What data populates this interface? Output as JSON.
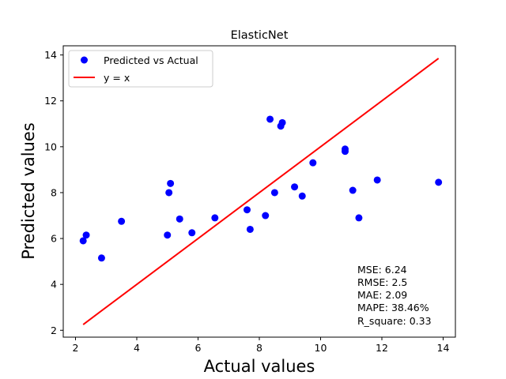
{
  "chart_data": {
    "type": "scatter",
    "title": "ElasticNet",
    "xlabel": "Actual values",
    "ylabel": "Predicted values",
    "xlim": [
      1.6,
      14.4
    ],
    "ylim": [
      1.7,
      14.4
    ],
    "xticks": [
      2,
      4,
      6,
      8,
      10,
      12,
      14
    ],
    "yticks": [
      2,
      4,
      6,
      8,
      10,
      12,
      14
    ],
    "grid": false,
    "legend_position": "top-left",
    "series": [
      {
        "name": "Predicted vs Actual",
        "kind": "scatter",
        "color": "#0000ff",
        "points": [
          [
            2.25,
            5.9
          ],
          [
            2.35,
            6.15
          ],
          [
            2.85,
            5.15
          ],
          [
            3.5,
            6.75
          ],
          [
            5.0,
            6.15
          ],
          [
            5.05,
            8.0
          ],
          [
            5.1,
            8.4
          ],
          [
            5.4,
            6.85
          ],
          [
            5.8,
            6.25
          ],
          [
            6.55,
            6.9
          ],
          [
            7.6,
            7.25
          ],
          [
            7.7,
            6.4
          ],
          [
            8.2,
            7.0
          ],
          [
            8.35,
            11.2
          ],
          [
            8.5,
            8.0
          ],
          [
            8.7,
            10.9
          ],
          [
            8.75,
            11.05
          ],
          [
            9.15,
            8.25
          ],
          [
            9.4,
            7.85
          ],
          [
            9.75,
            9.3
          ],
          [
            10.8,
            9.9
          ],
          [
            10.8,
            9.8
          ],
          [
            11.05,
            8.1
          ],
          [
            11.25,
            6.9
          ],
          [
            11.85,
            8.55
          ],
          [
            13.85,
            8.45
          ]
        ]
      },
      {
        "name": "y = x",
        "kind": "line",
        "color": "#ff0000",
        "points": [
          [
            2.25,
            2.25
          ],
          [
            13.85,
            13.85
          ]
        ]
      }
    ],
    "annotations": [
      "MSE: 6.24",
      "RMSE: 2.5",
      "MAE: 2.09",
      "MAPE: 38.46%",
      "R_square: 0.33"
    ]
  }
}
